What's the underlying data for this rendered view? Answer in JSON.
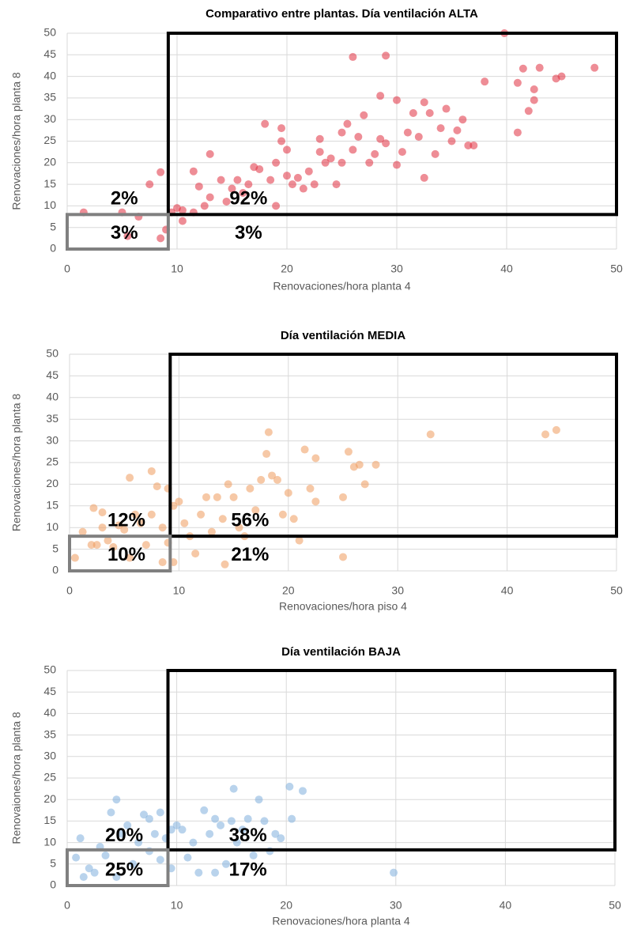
{
  "chart_data": [
    {
      "type": "scatter",
      "title": "Comparativo entre plantas. Día ventilación ALTA",
      "x_label": "Renovaciones/hora planta 4",
      "y_label": "Renovaciones/hora planta 8",
      "xlim": [
        0,
        50
      ],
      "ylim": [
        0,
        50
      ],
      "xticks": [
        0,
        10,
        20,
        30,
        40,
        50
      ],
      "yticks": [
        0,
        5,
        10,
        15,
        20,
        25,
        30,
        35,
        40,
        45,
        50
      ],
      "grid": true,
      "annotations": [
        "2%",
        "92%",
        "3%",
        "3%"
      ],
      "regions": [
        {
          "xlim": [
            9.2,
            50
          ],
          "ylim": [
            8,
            50
          ],
          "color": "#000000"
        },
        {
          "xlim": [
            0,
            9.2
          ],
          "ylim": [
            0,
            8
          ],
          "color": "#808080"
        }
      ],
      "series": [
        {
          "color": "#e0303f",
          "x": [
            1.5,
            5,
            5.5,
            6.5,
            7.5,
            8.5,
            8.5,
            9,
            9.5,
            10,
            10.5,
            10.5,
            11.5,
            11.5,
            12,
            12.5,
            13,
            13,
            14,
            14.5,
            15,
            15.5,
            16,
            16.5,
            17,
            17.5,
            18,
            18.5,
            19,
            19,
            19.5,
            19.5,
            20,
            20,
            20.5,
            21,
            21.5,
            22,
            22.5,
            23,
            23,
            23.5,
            24,
            24.5,
            25,
            25,
            25.5,
            26,
            26,
            26.5,
            27,
            27.5,
            28,
            28.5,
            28.5,
            29,
            29,
            30,
            30,
            30.5,
            31,
            31.5,
            32,
            32.5,
            32.5,
            33,
            33.5,
            34,
            34.5,
            35,
            35.5,
            36,
            36.5,
            37,
            38,
            39.8,
            41,
            41,
            41.5,
            42,
            42.5,
            42.5,
            43,
            44.5,
            45,
            48
          ],
          "y": [
            8.5,
            8.5,
            3,
            7.5,
            15,
            17.8,
            2.5,
            4.5,
            8.5,
            9.5,
            9,
            6.5,
            8.5,
            18,
            14.5,
            10,
            22,
            12,
            16,
            11,
            14,
            16,
            13,
            15,
            19,
            18.5,
            29,
            16,
            20,
            10,
            25,
            28,
            23,
            17,
            15,
            16.5,
            14,
            18,
            15,
            22.5,
            25.5,
            20,
            21,
            15,
            27,
            20,
            29,
            44.5,
            23,
            26,
            31,
            20,
            22,
            35.5,
            25.5,
            44.8,
            24.5,
            34.5,
            19.5,
            22.5,
            27,
            31.5,
            26,
            16.5,
            34,
            31.5,
            22,
            28,
            32.5,
            25,
            27.5,
            30,
            24,
            24,
            38.8,
            50,
            27,
            38.5,
            41.8,
            32,
            37,
            34.5,
            42,
            39.5,
            40,
            42
          ]
        }
      ]
    },
    {
      "type": "scatter",
      "title": "Día ventilación MEDIA",
      "x_label": "Renovaciones/hora piso 4",
      "y_label": "Renovaciones/hora planta 8",
      "xlim": [
        0,
        50
      ],
      "ylim": [
        0,
        50
      ],
      "xticks": [
        0,
        10,
        20,
        30,
        40,
        50
      ],
      "yticks": [
        0,
        5,
        10,
        15,
        20,
        25,
        30,
        35,
        40,
        45,
        50
      ],
      "grid": true,
      "annotations": [
        "12%",
        "56%",
        "10%",
        "21%"
      ],
      "regions": [
        {
          "xlim": [
            9.2,
            50
          ],
          "ylim": [
            8,
            50
          ],
          "color": "#000000"
        },
        {
          "xlim": [
            0,
            9.2
          ],
          "ylim": [
            0,
            8
          ],
          "color": "#808080"
        }
      ],
      "series": [
        {
          "color": "#ee9a5c",
          "x": [
            0.5,
            1.2,
            2,
            2.2,
            2.5,
            3,
            3,
            3.5,
            4,
            4.5,
            5,
            5.5,
            5.5,
            6,
            6.5,
            7,
            7.5,
            7.5,
            8,
            8.5,
            8.5,
            9,
            9,
            9.5,
            9.5,
            10,
            10.5,
            11,
            11.5,
            12,
            12.5,
            13,
            13.5,
            14,
            14.2,
            14.5,
            15,
            15.5,
            16,
            16.5,
            17,
            17.5,
            18,
            18.2,
            18.5,
            19,
            19.5,
            20,
            20.5,
            21,
            21.5,
            22,
            22.5,
            22.5,
            25,
            25,
            25.5,
            26,
            26.5,
            27,
            28,
            33,
            43.5,
            44.5
          ],
          "y": [
            3,
            9,
            6,
            14.5,
            6,
            10,
            13.5,
            7,
            5.5,
            10.5,
            9.5,
            21.5,
            3,
            13,
            11,
            6,
            23,
            13,
            19.5,
            10,
            2,
            19,
            6.5,
            15,
            2,
            16,
            11,
            8,
            4,
            13,
            17,
            9,
            17,
            12,
            1.5,
            20,
            17,
            10,
            8,
            19,
            14,
            21,
            27,
            32,
            22,
            21,
            13,
            18,
            12,
            7,
            28,
            19,
            26,
            16,
            3.2,
            17,
            27.5,
            24,
            24.5,
            20,
            24.5,
            31.5,
            31.5,
            32.5
          ]
        }
      ]
    },
    {
      "type": "scatter",
      "title": "Día ventilación BAJA",
      "x_label": "Renovaciones/hora planta 4",
      "y_label": "Renovaiones/hora  planta 8",
      "xlim": [
        0,
        50
      ],
      "ylim": [
        0,
        50
      ],
      "xticks": [
        0,
        10,
        20,
        30,
        40,
        50
      ],
      "yticks": [
        0,
        5,
        10,
        15,
        20,
        25,
        30,
        35,
        40,
        45,
        50
      ],
      "grid": true,
      "annotations": [
        "20%",
        "38%",
        "25%",
        "17%"
      ],
      "regions": [
        {
          "xlim": [
            9.2,
            50
          ],
          "ylim": [
            8.3,
            50
          ],
          "color": "#000000"
        },
        {
          "xlim": [
            0,
            9.2
          ],
          "ylim": [
            0,
            8.3
          ],
          "color": "#808080"
        }
      ],
      "series": [
        {
          "color": "#7faedc",
          "x": [
            0.8,
            1.2,
            1.5,
            2,
            2.5,
            3,
            3.5,
            4,
            4.5,
            4.5,
            5,
            5.5,
            6,
            6.5,
            7,
            7.5,
            7.5,
            8,
            8.5,
            8.5,
            9,
            9.5,
            9.5,
            10,
            10.5,
            11,
            11.5,
            12,
            12.5,
            13,
            13.5,
            13.5,
            14,
            14.5,
            15,
            15.2,
            15.5,
            16,
            16.5,
            17,
            17.5,
            18,
            18.5,
            19,
            19.5,
            20.3,
            20.5,
            21.5,
            29.8
          ],
          "y": [
            6.5,
            11,
            2,
            4,
            3,
            9,
            7,
            17,
            20,
            2,
            12,
            14,
            5,
            10,
            16.5,
            8,
            15.5,
            12,
            17,
            6,
            11,
            13,
            4,
            14,
            13,
            6.5,
            10,
            3,
            17.5,
            12,
            3,
            15.5,
            14,
            5,
            15,
            22.5,
            10,
            13,
            15.5,
            7,
            20,
            15,
            8,
            12,
            11,
            23,
            15.5,
            22,
            3
          ]
        }
      ]
    }
  ]
}
